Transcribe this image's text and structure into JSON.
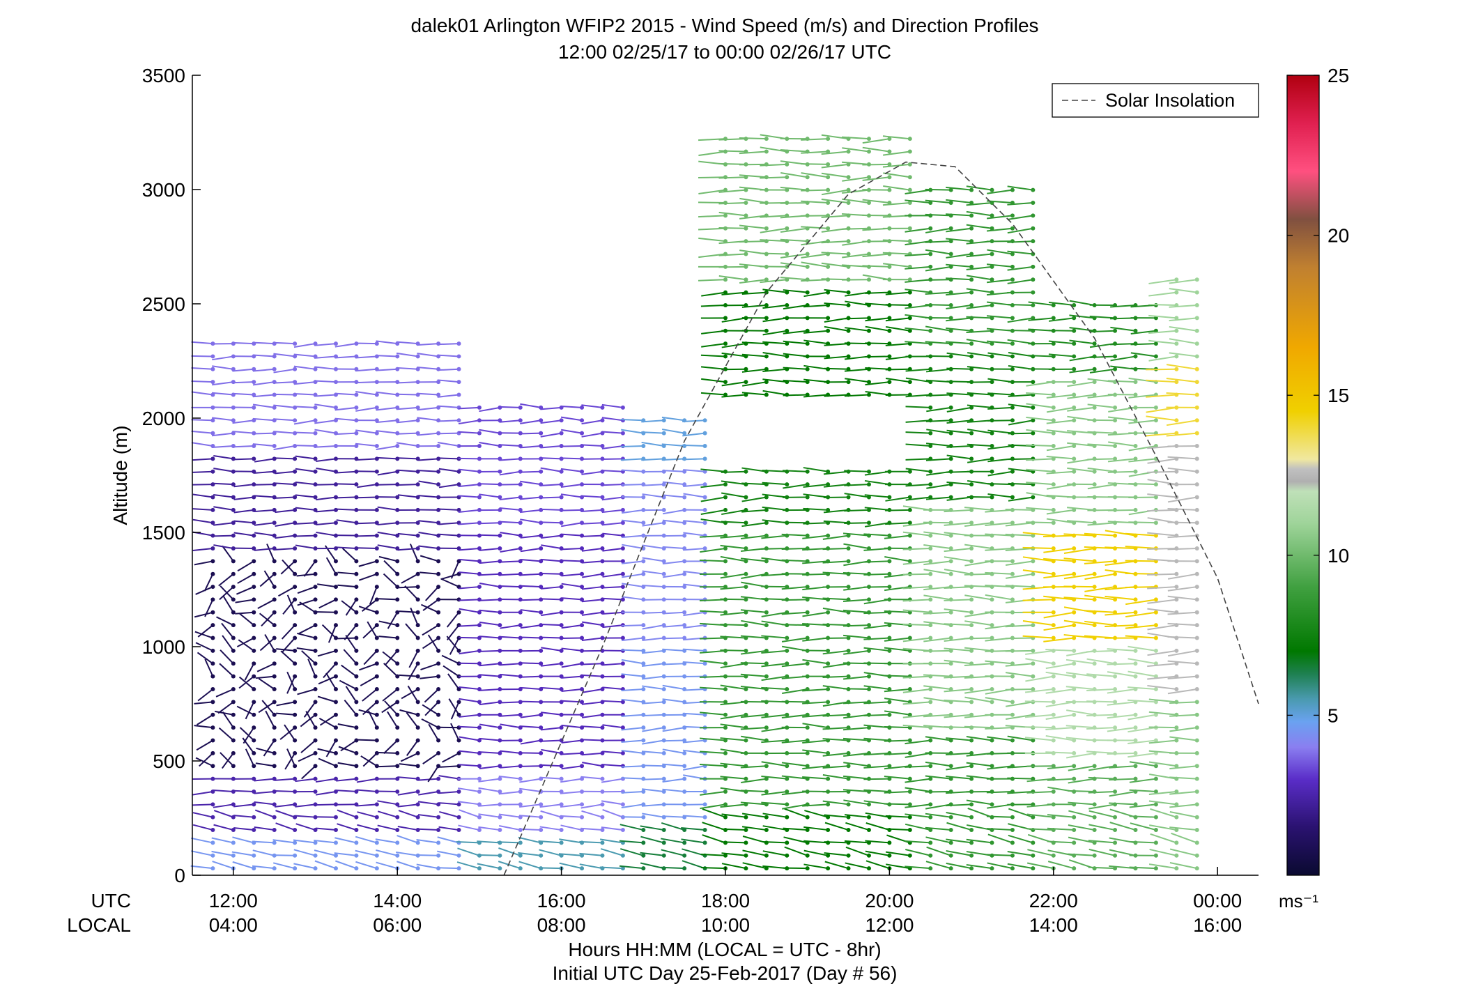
{
  "chart_data": {
    "type": "wind-barb-profile",
    "title": "dalek01 Arlington WFIP2 2015 - Wind Speed (m/s) and Direction Profiles",
    "subtitle": "12:00 02/25/17 to 00:00 02/26/17  UTC",
    "ylabel": "Altitude (m)",
    "ylim": [
      0,
      3500
    ],
    "yticks": [
      "0",
      "500",
      "1000",
      "1500",
      "2000",
      "2500",
      "3000",
      "3500"
    ],
    "xlim_hours": [
      11.5,
      24.5
    ],
    "xticks_utc": [
      "12:00",
      "14:00",
      "16:00",
      "18:00",
      "20:00",
      "22:00",
      "00:00"
    ],
    "xticks_local": [
      "04:00",
      "06:00",
      "08:00",
      "10:00",
      "12:00",
      "14:00",
      "16:00"
    ],
    "xtick_hours": [
      12,
      14,
      16,
      18,
      20,
      22,
      24
    ],
    "xlabel_row1": "UTC",
    "xlabel_row2": "LOCAL",
    "xlabel": "Hours HH:MM  (LOCAL = UTC - 8hr)",
    "xlabel2": "Initial UTC Day 25-Feb-2017 (Day # 56)",
    "legend": {
      "label": "Solar Insolation",
      "position": "top-right"
    },
    "solar_insolation": {
      "description": "dashed curve",
      "points": [
        [
          15.3,
          0
        ],
        [
          16.5,
          1000
        ],
        [
          17.5,
          1900
        ],
        [
          18.5,
          2550
        ],
        [
          19.5,
          2980
        ],
        [
          20.2,
          3120
        ],
        [
          20.8,
          3100
        ],
        [
          21.5,
          2850
        ],
        [
          22.5,
          2350
        ],
        [
          23.3,
          1800
        ],
        [
          24.0,
          1300
        ],
        [
          24.5,
          750
        ]
      ]
    },
    "colorbar": {
      "ticks": [
        5,
        10,
        15,
        20,
        25
      ],
      "range": [
        0,
        25
      ],
      "unit": "ms⁻¹",
      "stops": [
        [
          0,
          "#0a0a30"
        ],
        [
          1.5,
          "#2a1270"
        ],
        [
          3,
          "#5a2dc8"
        ],
        [
          4,
          "#8a7ef0"
        ],
        [
          4.8,
          "#6aa2f0"
        ],
        [
          5.5,
          "#4a9ab0"
        ],
        [
          6.3,
          "#1e8050"
        ],
        [
          7,
          "#007800"
        ],
        [
          9,
          "#40a040"
        ],
        [
          11,
          "#9fd49a"
        ],
        [
          12,
          "#bfe0b8"
        ],
        [
          12.3,
          "#b0b0b0"
        ],
        [
          12.7,
          "#c0c0c0"
        ],
        [
          13,
          "#f0e8a0"
        ],
        [
          14.5,
          "#f0d000"
        ],
        [
          16.5,
          "#f0a800"
        ],
        [
          19,
          "#c08030"
        ],
        [
          20.5,
          "#805040"
        ],
        [
          22,
          "#ff5080"
        ],
        [
          23.5,
          "#e02050"
        ],
        [
          25,
          "#b00010"
        ]
      ]
    },
    "speed_field": {
      "description": "approximate wind speed (m/s) by time block and altitude band; barbs point from the west",
      "blocks": [
        {
          "t": [
            11.7,
            14.8
          ],
          "bands": [
            [
              0,
              150,
              4.5
            ],
            [
              150,
              450,
              2.5
            ],
            [
              450,
              1420,
              0.8
            ],
            [
              1420,
              1850,
              2.2
            ],
            [
              1850,
              2350,
              3.8
            ]
          ]
        },
        {
          "t": [
            14.8,
            17.0
          ],
          "bands": [
            [
              0,
              150,
              5.5
            ],
            [
              150,
              450,
              4.0
            ],
            [
              450,
              1500,
              2.8
            ],
            [
              1500,
              2050,
              3.3
            ]
          ]
        },
        {
          "t": [
            17.0,
            18.0
          ],
          "bands": [
            [
              0,
              250,
              6.5
            ],
            [
              250,
              1000,
              4.5
            ],
            [
              1000,
              1800,
              4.2
            ],
            [
              1800,
              2000,
              5.0
            ]
          ]
        },
        {
          "t": [
            18.0,
            20.3
          ],
          "bands": [
            [
              0,
              300,
              7.0
            ],
            [
              300,
              1500,
              8.5
            ],
            [
              1500,
              1800,
              7.5
            ],
            [
              2100,
              2600,
              7.0
            ],
            [
              2600,
              3300,
              10.0
            ]
          ]
        },
        {
          "t": [
            20.3,
            22.0
          ],
          "bands": [
            [
              0,
              600,
              8.5
            ],
            [
              600,
              1600,
              10.5
            ],
            [
              1600,
              2300,
              7.5
            ],
            [
              2300,
              3000,
              8.5
            ]
          ]
        },
        {
          "t": [
            22.0,
            23.4
          ],
          "bands": [
            [
              0,
              500,
              9.5
            ],
            [
              500,
              1000,
              11.5
            ],
            [
              1000,
              1500,
              14.5
            ],
            [
              1500,
              2200,
              10.5
            ],
            [
              2200,
              2500,
              8.0
            ]
          ]
        },
        {
          "t": [
            23.4,
            24.0
          ],
          "bands": [
            [
              0,
              800,
              10.5
            ],
            [
              800,
              1900,
              12.5
            ],
            [
              1900,
              2250,
              14.0
            ],
            [
              2250,
              2650,
              11.0
            ]
          ]
        }
      ]
    }
  }
}
